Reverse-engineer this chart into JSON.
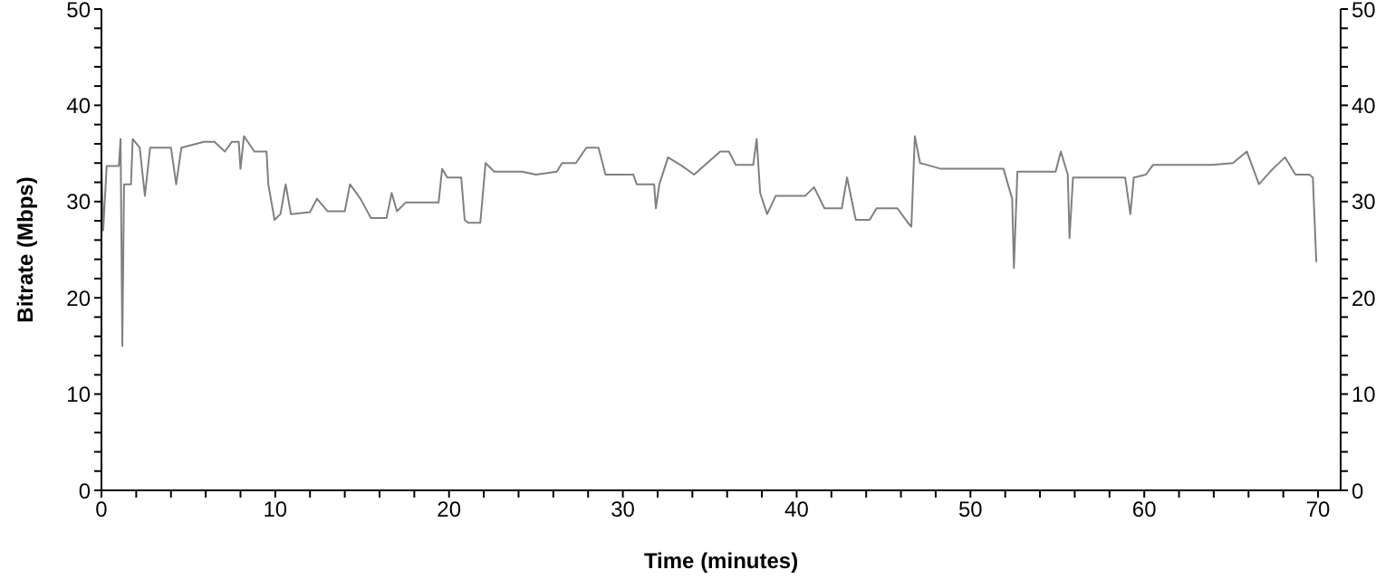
{
  "chart_data": {
    "type": "line",
    "xlabel": "Time (minutes)",
    "ylabel": "Bitrate (Mbps)",
    "x": [
      0,
      0.1,
      0.3,
      1.0,
      1.1,
      1.2,
      1.3,
      1.7,
      1.8,
      2.2,
      2.5,
      2.8,
      4.0,
      4.3,
      4.6,
      5.9,
      6.5,
      7.1,
      7.5,
      7.9,
      8.0,
      8.2,
      8.8,
      9.5,
      9.6,
      9.96,
      10.3,
      10.6,
      10.9,
      12.0,
      12.4,
      13.0,
      14.0,
      14.3,
      14.9,
      15.5,
      16.4,
      16.7,
      17.0,
      17.5,
      19.4,
      19.6,
      19.9,
      20.7,
      20.9,
      21.1,
      21.8,
      22.1,
      22.6,
      24.2,
      25.0,
      26.2,
      26.5,
      27.3,
      27.9,
      28.6,
      29.0,
      30.6,
      30.8,
      31.8,
      31.9,
      32.1,
      32.6,
      33.4,
      34.1,
      35.6,
      36.1,
      36.5,
      37.5,
      37.7,
      37.9,
      38.3,
      38.8,
      40.5,
      41.0,
      41.6,
      42.6,
      42.9,
      43.4,
      44.2,
      44.6,
      45.8,
      46.4,
      46.6,
      46.8,
      47.1,
      48.3,
      51.9,
      52.4,
      52.5,
      52.7,
      54.9,
      55.2,
      55.6,
      55.7,
      55.9,
      58.9,
      59.2,
      59.4,
      60.1,
      60.5,
      63.9,
      65.1,
      65.9,
      66.6,
      67.4,
      68.1,
      68.7,
      69.5,
      69.7,
      69.9
    ],
    "series": [
      {
        "color": "#808080",
        "values": [
          34.0,
          27,
          33.7,
          33.7,
          36.5,
          15,
          31.8,
          31.8,
          36.5,
          35.6,
          30.6,
          35.6,
          35.6,
          31.8,
          35.6,
          36.2,
          36.2,
          35.2,
          36.2,
          36.2,
          33.4,
          36.8,
          35.2,
          35.2,
          31.8,
          28.1,
          28.7,
          31.8,
          28.7,
          28.9,
          30.3,
          29.0,
          29.0,
          31.8,
          30.3,
          28.3,
          28.3,
          30.9,
          29.0,
          29.9,
          29.9,
          33.4,
          32.5,
          32.5,
          28.1,
          27.8,
          27.8,
          34.0,
          33.1,
          33.1,
          32.8,
          33.1,
          34.0,
          34.0,
          35.6,
          35.6,
          32.8,
          32.8,
          31.8,
          31.8,
          29.3,
          31.8,
          34.6,
          33.7,
          32.8,
          35.2,
          35.2,
          33.8,
          33.8,
          36.5,
          30.9,
          28.7,
          30.6,
          30.6,
          31.5,
          29.3,
          29.3,
          32.5,
          28.1,
          28.1,
          29.3,
          29.3,
          27.8,
          27.4,
          36.8,
          34.0,
          33.4,
          33.4,
          30.3,
          23.1,
          33.1,
          33.1,
          35.2,
          32.8,
          26.2,
          32.5,
          32.5,
          28.7,
          32.5,
          32.8,
          33.8,
          33.8,
          34.0,
          35.2,
          31.8,
          33.4,
          34.6,
          32.8,
          32.8,
          32.5,
          23.7
        ]
      }
    ],
    "xlim": [
      0,
      71.3
    ],
    "xticks": [
      0,
      {
        "value": 2,
        "label": null
      },
      {
        "value": 4,
        "label": null
      },
      {
        "value": 6,
        "label": null
      },
      {
        "value": 8,
        "label": null
      },
      10,
      {
        "value": 12,
        "label": null
      },
      {
        "value": 14,
        "label": null
      },
      {
        "value": 16,
        "label": null
      },
      {
        "value": 18,
        "label": null
      },
      20,
      {
        "value": 22,
        "label": null
      },
      {
        "value": 24,
        "label": null
      },
      {
        "value": 26,
        "label": null
      },
      {
        "value": 28,
        "label": null
      },
      30,
      {
        "value": 32,
        "label": null
      },
      {
        "value": 34,
        "label": null
      },
      {
        "value": 36,
        "label": null
      },
      {
        "value": 38,
        "label": null
      },
      40,
      {
        "value": 42,
        "label": null
      },
      {
        "value": 44,
        "label": null
      },
      {
        "value": 46,
        "label": null
      },
      {
        "value": 48,
        "label": null
      },
      50,
      {
        "value": 52,
        "label": null
      },
      {
        "value": 54,
        "label": null
      },
      {
        "value": 56,
        "label": null
      },
      {
        "value": 58,
        "label": null
      },
      60,
      {
        "value": 62,
        "label": null
      },
      {
        "value": 64,
        "label": null
      },
      {
        "value": 66,
        "label": null
      },
      {
        "value": 68,
        "label": null
      },
      70
    ],
    "ylim": [
      0,
      50
    ],
    "yticks": [
      0,
      {
        "value": 2,
        "label": null
      },
      {
        "value": 4,
        "label": null
      },
      {
        "value": 6,
        "label": null
      },
      {
        "value": 8,
        "label": null
      },
      10,
      {
        "value": 12,
        "label": null
      },
      {
        "value": 14,
        "label": null
      },
      {
        "value": 16,
        "label": null
      },
      {
        "value": 18,
        "label": null
      },
      20,
      {
        "value": 22,
        "label": null
      },
      {
        "value": 24,
        "label": null
      },
      {
        "value": 26,
        "label": null
      },
      {
        "value": 28,
        "label": null
      },
      30,
      {
        "value": 32,
        "label": null
      },
      {
        "value": 34,
        "label": null
      },
      {
        "value": 36,
        "label": null
      },
      {
        "value": 38,
        "label": null
      },
      40,
      {
        "value": 42,
        "label": null
      },
      {
        "value": 44,
        "label": null
      },
      {
        "value": 46,
        "label": null
      },
      {
        "value": 48,
        "label": null
      },
      50
    ],
    "y2lim": [
      0,
      50
    ],
    "y2ticks": [
      0,
      {
        "value": 2,
        "label": null
      },
      {
        "value": 4,
        "label": null
      },
      {
        "value": 6,
        "label": null
      },
      {
        "value": 8,
        "label": null
      },
      10,
      {
        "value": 12,
        "label": null
      },
      {
        "value": 14,
        "label": null
      },
      {
        "value": 16,
        "label": null
      },
      {
        "value": 18,
        "label": null
      },
      20,
      {
        "value": 22,
        "label": null
      },
      {
        "value": 24,
        "label": null
      },
      {
        "value": 26,
        "label": null
      },
      {
        "value": 28,
        "label": null
      },
      30,
      {
        "value": 32,
        "label": null
      },
      {
        "value": 34,
        "label": null
      },
      {
        "value": 36,
        "label": null
      },
      {
        "value": 38,
        "label": null
      },
      40,
      {
        "value": 42,
        "label": null
      },
      {
        "value": 44,
        "label": null
      },
      {
        "value": 46,
        "label": null
      },
      {
        "value": 48,
        "label": null
      },
      50
    ],
    "grid": false,
    "legend": false,
    "marker": "none",
    "line_style": "solid"
  }
}
